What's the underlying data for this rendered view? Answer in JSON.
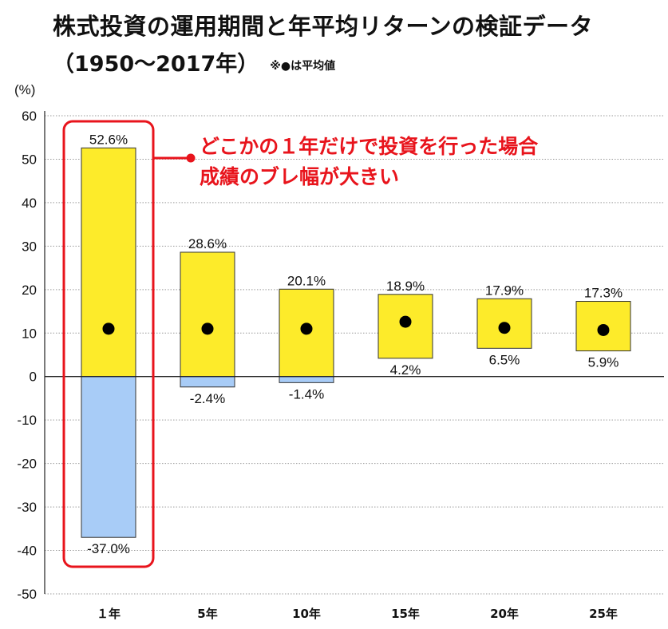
{
  "title": {
    "line1": "株式投資の運用期間と年平均リターンの検証データ",
    "line2": "（1950〜2017年）",
    "note": "※●は平均値"
  },
  "chart_data": {
    "type": "bar",
    "subtype": "range-bar",
    "ylabel": "(%)",
    "ylim": [
      -50,
      60
    ],
    "yticks": [
      60,
      50,
      40,
      30,
      20,
      10,
      0,
      -10,
      -20,
      -30,
      -40,
      -50
    ],
    "grid": true,
    "categories": [
      "１年",
      "5年",
      "10年",
      "15年",
      "20年",
      "25年"
    ],
    "max_labels": [
      "52.6%",
      "28.6%",
      "20.1%",
      "18.9%",
      "17.9%",
      "17.3%"
    ],
    "min_labels": [
      "-37.0%",
      "-2.4%",
      "-1.4%",
      "4.2%",
      "6.5%",
      "5.9%"
    ],
    "max_values": [
      52.6,
      28.6,
      20.1,
      18.9,
      17.9,
      17.3
    ],
    "min_values": [
      -37.0,
      -2.4,
      -1.4,
      4.2,
      6.5,
      5.9
    ],
    "mean_values": [
      11.0,
      11.0,
      11.0,
      12.6,
      11.2,
      10.7
    ],
    "colors": {
      "positive": "#fdeb2a",
      "negative": "#a8ccf7",
      "mean": "#000000",
      "highlight": "#e8141c"
    },
    "annotation": {
      "line1": "どこかの１年だけで投資を行った場合",
      "line2": "成績のブレ幅が大きい",
      "target_category": "１年"
    }
  }
}
